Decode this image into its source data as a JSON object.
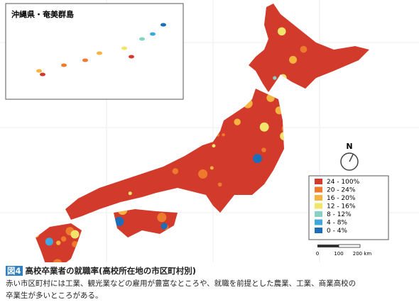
{
  "inset": {
    "title": "沖縄県・奄美群島"
  },
  "north_label": "N",
  "legend": {
    "items": [
      {
        "label": "24 - 100%",
        "color": "#d23a2c"
      },
      {
        "label": "20 - 24%",
        "color": "#ee7a2d"
      },
      {
        "label": "16 - 20%",
        "color": "#f6b33e"
      },
      {
        "label": "12 - 16%",
        "color": "#f2e56c"
      },
      {
        "label": "8 - 12%",
        "color": "#86d0c4"
      },
      {
        "label": "4 - 8%",
        "color": "#3fa6df"
      },
      {
        "label": "0 - 4%",
        "color": "#1d6eb8"
      }
    ]
  },
  "scale_bar": {
    "labels": [
      "0",
      "100",
      "200 km"
    ]
  },
  "caption": {
    "figure_number": "図4",
    "title": "高校卒業者の就職率(高校所在地の市区町村別)",
    "lines": [
      "赤い市区町村には工業、観光業などの雇用が豊富なところや、就職を前提とした農業、工業、商業高校の",
      "卒業生が多いところがある。"
    ]
  }
}
